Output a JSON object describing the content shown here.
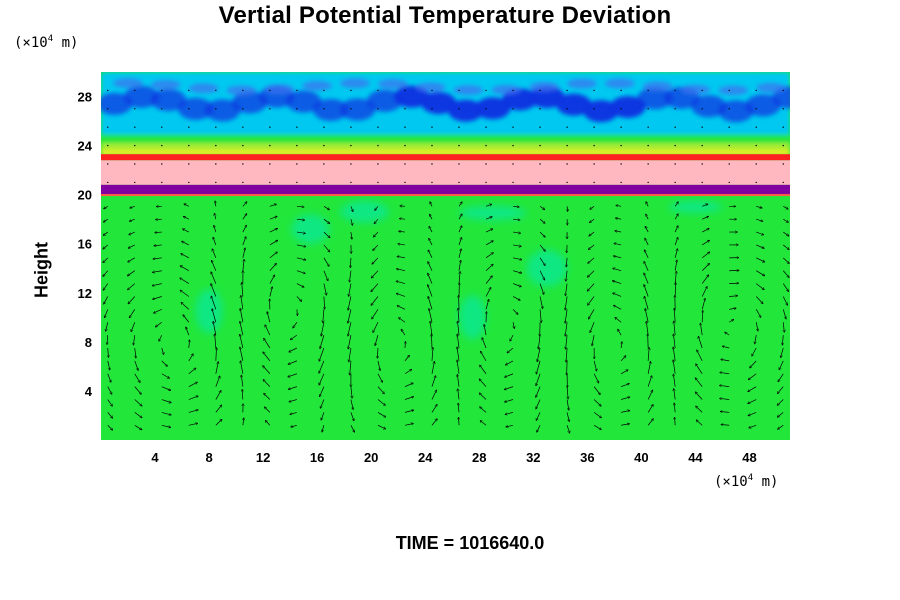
{
  "chart_data": {
    "type": "heatmap",
    "title": "Vertial Potential Temperature Deviation",
    "ylabel": "Height",
    "xlabel": "",
    "x_unit": {
      "prefix": "(×10",
      "exp": "4",
      "suffix": " m)"
    },
    "y_unit": {
      "prefix": "(×10",
      "exp": "4",
      "suffix": " m)"
    },
    "xlim": [
      0,
      51
    ],
    "ylim": [
      0,
      30
    ],
    "x_ticks": [
      4,
      8,
      12,
      16,
      20,
      24,
      28,
      32,
      36,
      40,
      44,
      48
    ],
    "y_ticks": [
      4,
      8,
      12,
      16,
      20,
      24,
      28
    ],
    "overlay": "velocity vectors",
    "colors": {
      "background_field": "#22e63a",
      "lower_cool": "#00e8c0",
      "upper_cold": "#1030e0",
      "upper_mid": "#00c8f0",
      "warm_band": "#ffb8c0",
      "red_line": "#ff2020",
      "purple_band": "#8000a0",
      "yellow": "#f0f020"
    },
    "layers": [
      {
        "name": "upper blue layer",
        "y_from": 24.5,
        "y_to": 30
      },
      {
        "name": "red line",
        "y_from": 22.8,
        "y_to": 23.3
      },
      {
        "name": "pink warm band",
        "y_from": 20.8,
        "y_to": 22.8
      },
      {
        "name": "purple band",
        "y_from": 20.0,
        "y_to": 20.8
      }
    ]
  },
  "footer": {
    "time_text": "TIME = 1016640.0"
  }
}
